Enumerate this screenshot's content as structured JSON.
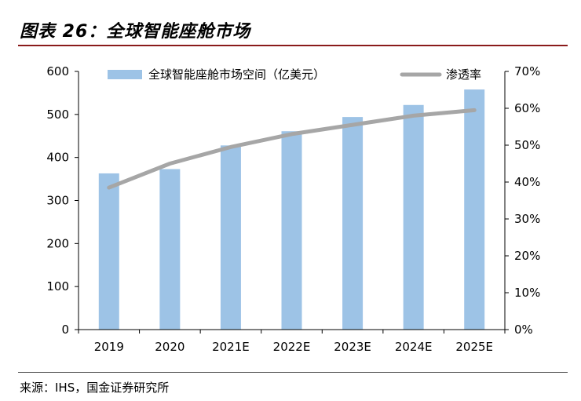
{
  "figure": {
    "title": "图表 26：全球智能座舱市场",
    "source": "来源：IHS，国金证券研究所"
  },
  "colors": {
    "bar": "#9dc3e6",
    "line": "#a6a6a6",
    "axis": "#000000",
    "title_rule": "#8a1b1b"
  },
  "chart_data": {
    "type": "bar",
    "title": "全球智能座舱市场",
    "categories": [
      "2019",
      "2020",
      "2021E",
      "2022E",
      "2023E",
      "2024E",
      "2025E"
    ],
    "series": [
      {
        "name": "全球智能座舱市场空间（亿美元）",
        "type": "bar",
        "axis": "left",
        "values": [
          363,
          373,
          428,
          461,
          494,
          522,
          558
        ]
      },
      {
        "name": "渗透率",
        "type": "line",
        "axis": "right",
        "values": [
          38.5,
          45.0,
          49.5,
          53.0,
          55.5,
          58.0,
          59.5
        ]
      }
    ],
    "ylim_left": [
      0,
      600
    ],
    "yticks_left": [
      "0",
      "100",
      "200",
      "300",
      "400",
      "500",
      "600"
    ],
    "ylim_right": [
      0,
      70
    ],
    "yticks_right": [
      "0%",
      "10%",
      "20%",
      "30%",
      "40%",
      "50%",
      "60%",
      "70%"
    ],
    "legend": [
      "全球智能座舱市场空间（亿美元）",
      "渗透率"
    ],
    "legend_position": "top",
    "grid": false
  }
}
